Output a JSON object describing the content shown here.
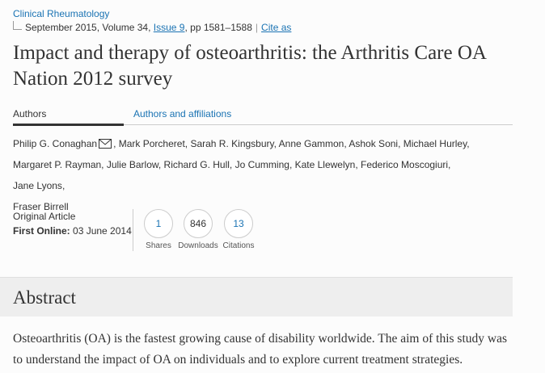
{
  "journal": {
    "name": "Clinical Rheumatology"
  },
  "issue": {
    "date_volume": "September 2015, Volume 34,",
    "issue_link": "Issue 9",
    "pages": ", pp 1581–1588",
    "separator": "|",
    "cite": "Cite as"
  },
  "title": "Impact and therapy of osteoarthritis: the Arthritis Care OA Nation 2012 survey",
  "tabs": {
    "authors": "Authors",
    "affiliations": "Authors and affiliations"
  },
  "authors": [
    "Philip G. Conaghan",
    "Mark Porcheret",
    "Sarah R. Kingsbury",
    "Anne Gammon",
    "Ashok Soni",
    "Michael Hurley",
    "Margaret P. Rayman",
    "Julie Barlow",
    "Richard G. Hull",
    "Jo Cumming",
    "Kate Llewelyn",
    "Federico Moscogiuri",
    "Jane Lyons",
    "Fraser Birrell"
  ],
  "article": {
    "type": "Original Article",
    "first_online_label": "First Online:",
    "first_online_date": "03 June 2014"
  },
  "metrics": {
    "shares": {
      "value": "1",
      "label": "Shares"
    },
    "downloads": {
      "value": "846",
      "label": "Downloads"
    },
    "citations": {
      "value": "13",
      "label": "Citations"
    }
  },
  "abstract": {
    "heading": "Abstract",
    "text": "Osteoarthritis (OA) is the fastest growing cause of disability worldwide. The aim of this study was to understand the impact of OA on individuals and to explore current treatment strategies."
  },
  "colors": {
    "link": "#1a73b3",
    "band": "#eeeeee"
  },
  "icons": {
    "corresponding_author": "mail-icon"
  }
}
